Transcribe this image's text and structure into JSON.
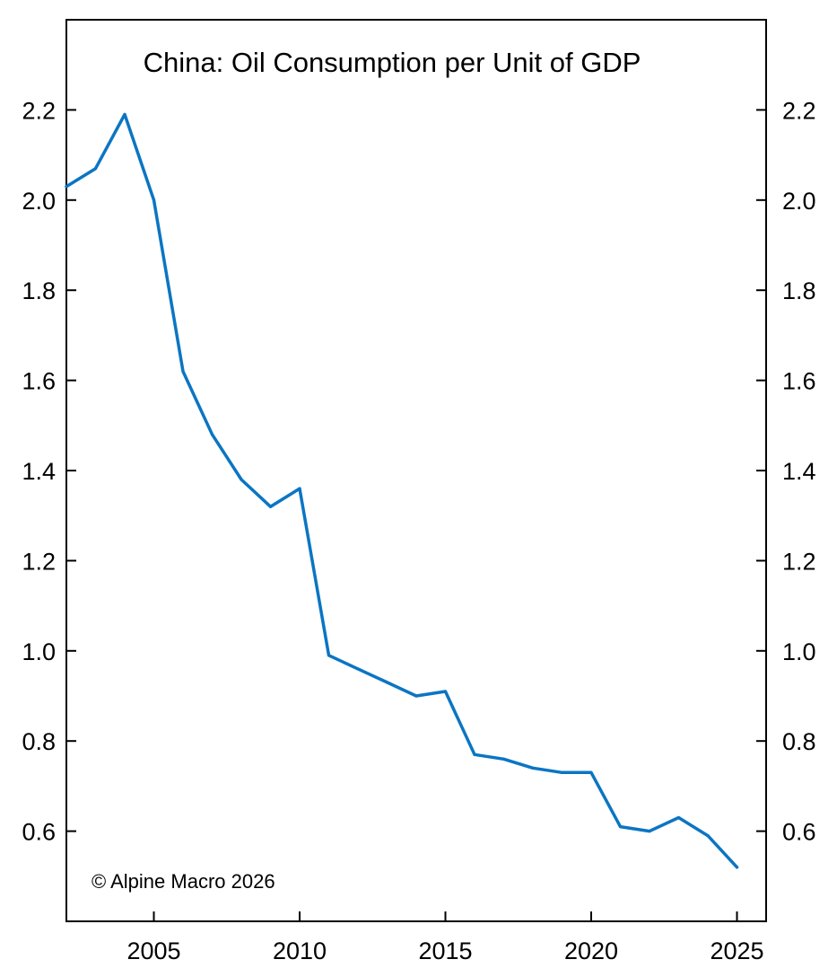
{
  "chart_data": {
    "type": "line",
    "title": "China: Oil Consumption per Unit of GDP",
    "xlabel": "",
    "ylabel": "",
    "xlim": [
      2002,
      2026
    ],
    "ylim": [
      0.4,
      2.4
    ],
    "x_ticks": [
      2005,
      2010,
      2015,
      2020,
      2025
    ],
    "y_ticks": [
      0.6,
      0.8,
      1.0,
      1.2,
      1.4,
      1.6,
      1.8,
      2.0,
      2.2
    ],
    "y_tick_labels": [
      "0.6",
      "0.8",
      "1.0",
      "1.2",
      "1.4",
      "1.6",
      "1.8",
      "2.0",
      "2.2"
    ],
    "dual_y_axis": true,
    "grid": false,
    "legend": "none",
    "series": [
      {
        "color": "#0B75C3",
        "x": [
          2002,
          2003,
          2004,
          2005,
          2006,
          2007,
          2008,
          2009,
          2010,
          2011,
          2012,
          2013,
          2014,
          2015,
          2016,
          2017,
          2018,
          2019,
          2020,
          2021,
          2022,
          2023,
          2024,
          2025
        ],
        "y": [
          2.03,
          2.07,
          2.19,
          2.0,
          1.62,
          1.48,
          1.38,
          1.32,
          1.36,
          0.99,
          0.96,
          0.93,
          0.9,
          0.91,
          0.77,
          0.76,
          0.74,
          0.73,
          0.73,
          0.61,
          0.6,
          0.63,
          0.59,
          0.52
        ]
      }
    ],
    "annotation": "© Alpine Macro 2026"
  }
}
